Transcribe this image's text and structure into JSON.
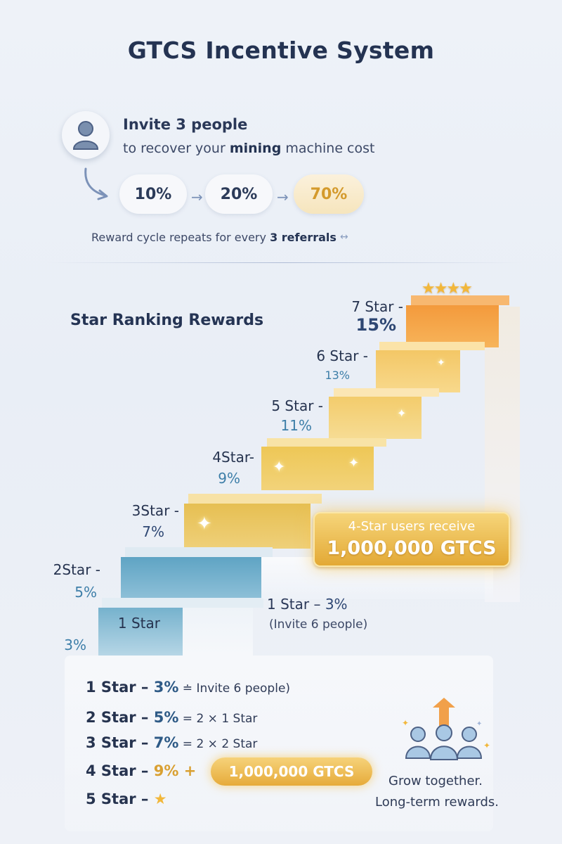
{
  "title": "GTCS Incentive System",
  "invite": {
    "title": "Invite 3 people",
    "sub_prefix": "to recover your ",
    "sub_bold": "mining",
    "sub_suffix": " machine cost",
    "steps": [
      "10%",
      "20%",
      "70%"
    ],
    "arrow": "→",
    "cycle_prefix": "Reward cycle repeats for every ",
    "cycle_bold": "3 referrals",
    "cycle_icon": "↔"
  },
  "star_ranking": {
    "title": "Star Ranking Rewards",
    "top_stars": "★★★★",
    "levels": [
      {
        "label": "1 Star",
        "value": "3%"
      },
      {
        "label": "2Star -",
        "value": "5%"
      },
      {
        "label": "3Star -",
        "value": "7%"
      },
      {
        "label": "4Star-",
        "value": "9%"
      },
      {
        "label": "5 Star -",
        "value": "11%"
      },
      {
        "label": "6 Star -",
        "value": "13%"
      },
      {
        "label": "7 Star -",
        "value": "15%"
      }
    ],
    "badge_line1": "4-Star users receive",
    "badge_line2": "1,000,000 GTCS",
    "one_star_label": "1 Star – ",
    "one_star_value": "3%",
    "one_star_note": "(Invite 6 people)"
  },
  "summary": {
    "rows": [
      {
        "label": "1 Star – ",
        "value": "3%",
        "rest": " ≐ Invite 6 people)"
      },
      {
        "label": "2 Star – ",
        "value": "5%",
        "rest": " = 2 × 1 Star"
      },
      {
        "label": "3 Star – ",
        "value": "7%",
        "rest": " = 2 × 2 Star"
      },
      {
        "label": "4 Star – ",
        "value": "9%",
        "rest": " +"
      },
      {
        "label": "5 Star – ",
        "value": "",
        "rest": "★"
      }
    ],
    "gtcs_pill": "1,000,000 GTCS",
    "grow_line1": "Grow together.",
    "grow_line2": "Long-term rewards."
  },
  "colors": {
    "gold": "#e6ab3a",
    "step_blue": "#5fa4c4",
    "step_gold": "#f2c558",
    "step_orange": "#f09a3a"
  },
  "icons": [
    "user-icon",
    "curved-arrow-icon",
    "cycle-icon",
    "sparkle-icon",
    "people-group-icon",
    "up-arrow-icon",
    "star-icon"
  ]
}
